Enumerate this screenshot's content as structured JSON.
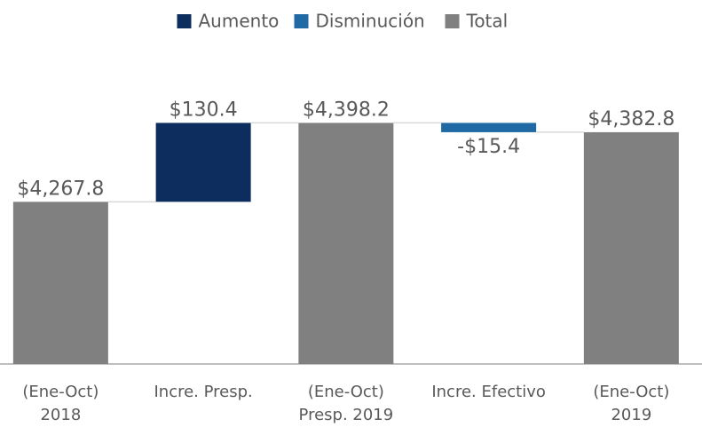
{
  "chart_data": {
    "type": "waterfall",
    "categories": [
      [
        "(Ene-Oct)",
        "2018"
      ],
      [
        "Incre. Presp."
      ],
      [
        "(Ene-Oct)",
        "Presp. 2019"
      ],
      [
        "Incre. Efectivo"
      ],
      [
        "(Ene-Oct)",
        "2019"
      ]
    ],
    "values": [
      4267.8,
      130.4,
      4398.2,
      -15.4,
      4382.8
    ],
    "value_labels": [
      "$4,267.8",
      "$130.4",
      "$4,398.2",
      "-$15.4",
      "$4,382.8"
    ],
    "kinds": [
      "total",
      "increase",
      "total",
      "decrease",
      "total"
    ],
    "legend": [
      {
        "name": "Aumento",
        "kind": "increase",
        "color": "#0d2d5e"
      },
      {
        "name": "Disminución",
        "kind": "decrease",
        "color": "#1f6aa5"
      },
      {
        "name": "Total",
        "kind": "total",
        "color": "#808080"
      }
    ],
    "ylim": [
      4000,
      4500
    ]
  }
}
